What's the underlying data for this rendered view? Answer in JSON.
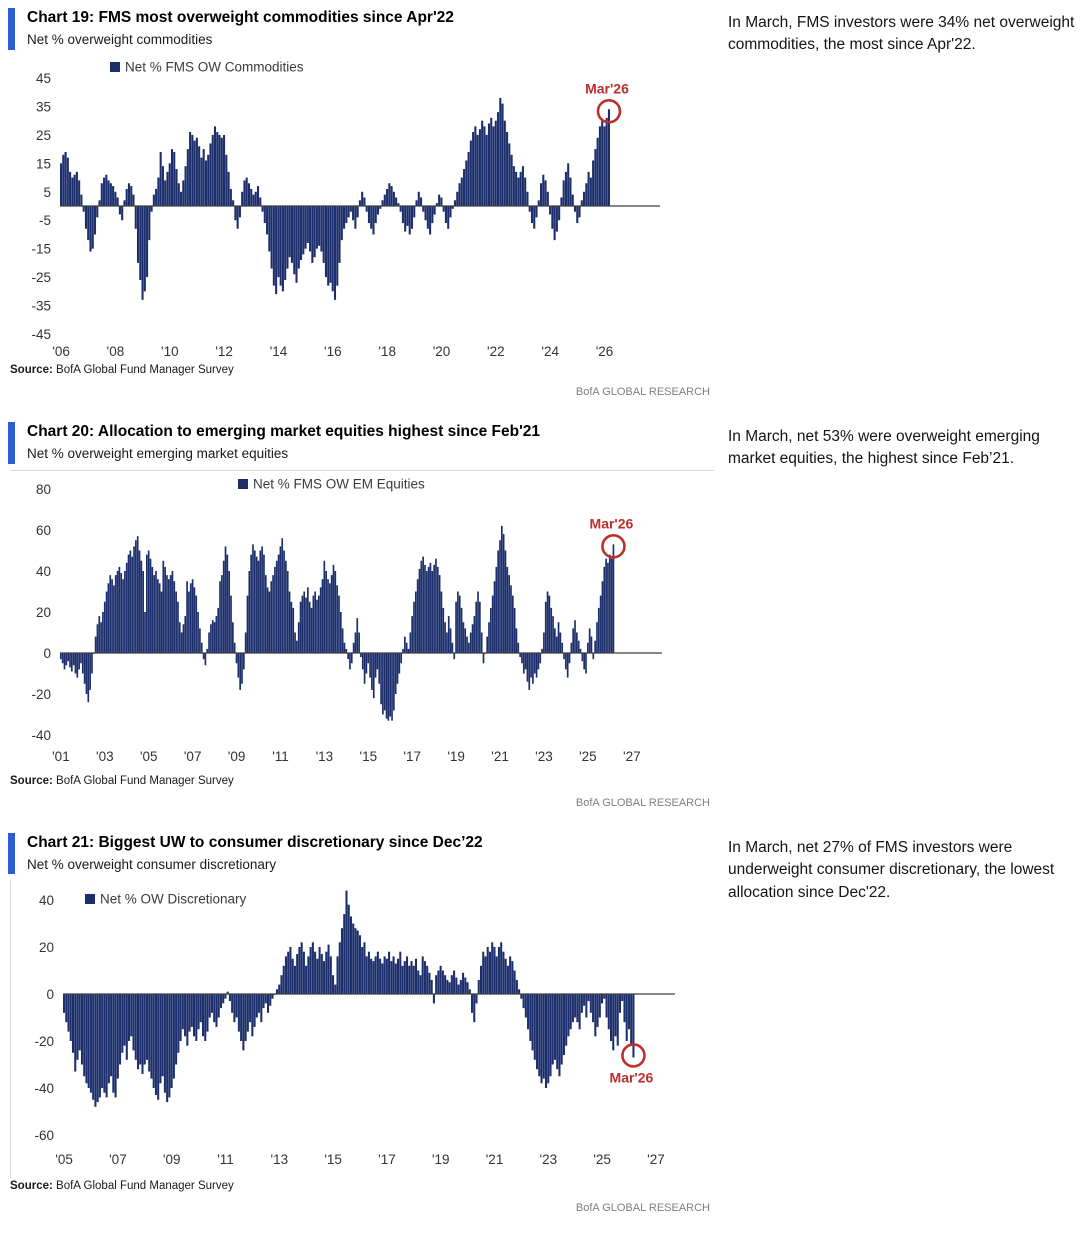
{
  "colors": {
    "bar_navy": "#1b2e6b",
    "accent_blue": "#2d5bd3",
    "annotation_red": "#bb2f2e",
    "axis_line": "#3f3f3f",
    "border_gray": "#d9d9d9",
    "research_gray": "#7f7f7f"
  },
  "sections": [
    {
      "title": "Chart 19: FMS most overweight commodities since Apr'22",
      "subtitle": "Net % overweight commodities",
      "note": "In March, FMS investors were 34% net overweight commodities, the most since Apr'22.",
      "source_label": "Source:",
      "source_text": "BofA Global Fund Manager Survey",
      "research": "BofA GLOBAL RESEARCH"
    },
    {
      "title": "Chart 20: Allocation to emerging market equities highest since Feb'21",
      "subtitle": "Net % overweight emerging market equities",
      "note": "In March, net 53% were overweight emerging market equities, the highest since Feb’21.",
      "source_label": "Source:",
      "source_text": "BofA Global Fund Manager Survey",
      "research": "BofA GLOBAL RESEARCH"
    },
    {
      "title": "Chart 21: Biggest UW to consumer discretionary since Dec’22",
      "subtitle": "Net % overweight consumer discretionary",
      "note": "In March, net 27% of FMS investors were underweight consumer discretionary, the lowest allocation since Dec'22.",
      "source_label": "Source:",
      "source_text": "BofA Global Fund Manager Survey",
      "research": "BofA GLOBAL RESEARCH"
    }
  ],
  "chart_data": [
    {
      "type": "bar",
      "title": "Chart 19: FMS most overweight commodities since Apr'22",
      "legend": "Net % FMS OW Commodities",
      "ylabel": "Net % overweight commodities",
      "ylim": [
        -45,
        45
      ],
      "yticks": [
        45,
        35,
        25,
        15,
        5,
        -5,
        -15,
        -25,
        -35,
        -45
      ],
      "x_start": "2006-01",
      "x_axis_end": "2028-02",
      "xticks": [
        "'06",
        "'08",
        "'10",
        "'12",
        "'14",
        "'16",
        "'18",
        "'20",
        "'22",
        "'24",
        "'26"
      ],
      "xtick_years": [
        2006,
        2008,
        2010,
        2012,
        2014,
        2016,
        2018,
        2020,
        2022,
        2024,
        2026
      ],
      "annotation": {
        "label": "Mar'26",
        "month": "2026-03",
        "value": 34,
        "placement": "above"
      },
      "grid": false,
      "legend_position": "top-left",
      "values": [
        15,
        18,
        19,
        17,
        12,
        10,
        11,
        12,
        9,
        4,
        -2,
        -8,
        -12,
        -16,
        -15,
        -10,
        -4,
        2,
        8,
        10,
        11,
        9,
        8,
        7,
        5,
        3,
        -3,
        -5,
        2,
        6,
        8,
        7,
        4,
        -8,
        -20,
        -26,
        -33,
        -30,
        -25,
        -12,
        -2,
        4,
        6,
        10,
        19,
        14,
        9,
        12,
        15,
        20,
        19,
        13,
        8,
        5,
        9,
        14,
        20,
        26,
        25,
        23,
        24,
        21,
        17,
        20,
        16,
        18,
        22,
        25,
        28,
        26,
        25,
        24,
        25,
        18,
        12,
        6,
        2,
        -5,
        -8,
        -4,
        5,
        9,
        10,
        8,
        6,
        4,
        5,
        7,
        3,
        -2,
        -6,
        -10,
        -16,
        -22,
        -28,
        -31,
        -25,
        -28,
        -30,
        -26,
        -22,
        -18,
        -20,
        -24,
        -27,
        -22,
        -19,
        -17,
        -15,
        -13,
        -16,
        -20,
        -18,
        -15,
        -14,
        -16,
        -20,
        -25,
        -28,
        -27,
        -30,
        -33,
        -28,
        -20,
        -12,
        -8,
        -6,
        -4,
        -2,
        -5,
        -8,
        -4,
        2,
        5,
        3,
        -2,
        -6,
        -8,
        -10,
        -6,
        -3,
        -1,
        2,
        4,
        6,
        8,
        7,
        5,
        3,
        1,
        -2,
        -6,
        -9,
        -7,
        -10,
        -8,
        -4,
        2,
        5,
        3,
        -2,
        -5,
        -8,
        -10,
        -6,
        -3,
        1,
        4,
        3,
        -2,
        -6,
        -8,
        -4,
        -1,
        2,
        5,
        8,
        10,
        13,
        16,
        19,
        23,
        26,
        28,
        25,
        27,
        30,
        28,
        25,
        29,
        31,
        28,
        30,
        33,
        38,
        36,
        30,
        26,
        22,
        18,
        14,
        12,
        10,
        12,
        14,
        10,
        5,
        -2,
        -6,
        -8,
        -4,
        2,
        8,
        11,
        9,
        5,
        -3,
        -8,
        -12,
        -9,
        -5,
        3,
        9,
        12,
        15,
        10,
        4,
        -2,
        -6,
        -4,
        2,
        5,
        8,
        12,
        10,
        16,
        20,
        24,
        28,
        30,
        28,
        31,
        34
      ]
    },
    {
      "type": "bar",
      "title": "Chart 20: Allocation to emerging market equities highest since Feb'21",
      "legend": "Net % FMS OW EM Equities",
      "ylabel": "Net % overweight emerging market equities",
      "ylim": [
        -40,
        80
      ],
      "yticks": [
        80,
        60,
        40,
        20,
        0,
        -20,
        -40
      ],
      "x_start": "2001-01",
      "x_axis_end": "2028-06",
      "xticks": [
        "'01",
        "'03",
        "'05",
        "'07",
        "'09",
        "'11",
        "'13",
        "'15",
        "'17",
        "'19",
        "'21",
        "'23",
        "'25",
        "'27"
      ],
      "xtick_years": [
        2001,
        2003,
        2005,
        2007,
        2009,
        2011,
        2013,
        2015,
        2017,
        2019,
        2021,
        2023,
        2025,
        2027
      ],
      "annotation": {
        "label": "Mar'26",
        "month": "2026-03",
        "value": 53,
        "placement": "above"
      },
      "grid": false,
      "legend_position": "top-center",
      "values": [
        -3,
        -5,
        -8,
        -6,
        -4,
        -7,
        -9,
        -6,
        -10,
        -12,
        -8,
        -5,
        -10,
        -15,
        -20,
        -24,
        -18,
        -10,
        0,
        8,
        14,
        18,
        15,
        20,
        25,
        30,
        34,
        38,
        36,
        33,
        38,
        40,
        42,
        39,
        36,
        40,
        44,
        48,
        50,
        47,
        52,
        55,
        57,
        50,
        45,
        40,
        20,
        48,
        50,
        46,
        42,
        38,
        40,
        36,
        34,
        30,
        45,
        42,
        38,
        36,
        38,
        40,
        35,
        30,
        25,
        15,
        10,
        14,
        18,
        35,
        30,
        34,
        36,
        32,
        28,
        20,
        12,
        5,
        -3,
        -6,
        2,
        10,
        14,
        16,
        15,
        18,
        22,
        35,
        38,
        45,
        52,
        48,
        40,
        28,
        15,
        5,
        -5,
        -12,
        -18,
        -15,
        -8,
        10,
        28,
        40,
        48,
        53,
        50,
        47,
        45,
        50,
        52,
        48,
        38,
        32,
        30,
        35,
        38,
        42,
        45,
        48,
        52,
        56,
        50,
        45,
        40,
        30,
        25,
        22,
        10,
        6,
        15,
        25,
        28,
        30,
        27,
        32,
        25,
        22,
        28,
        30,
        26,
        28,
        32,
        36,
        45,
        40,
        36,
        34,
        38,
        43,
        40,
        33,
        28,
        20,
        12,
        5,
        2,
        -3,
        -8,
        -5,
        5,
        10,
        17,
        10,
        -2,
        -8,
        -15,
        -10,
        -5,
        -12,
        -18,
        -22,
        -12,
        -8,
        -15,
        -25,
        -30,
        -28,
        -32,
        -33,
        -31,
        -33,
        -28,
        -20,
        -15,
        -10,
        -5,
        2,
        8,
        5,
        2,
        10,
        18,
        25,
        30,
        36,
        41,
        45,
        47,
        43,
        40,
        42,
        44,
        40,
        43,
        46,
        42,
        38,
        30,
        22,
        15,
        10,
        18,
        12,
        5,
        -3,
        25,
        30,
        28,
        22,
        15,
        12,
        8,
        5,
        10,
        14,
        18,
        25,
        30,
        25,
        10,
        -5,
        0,
        8,
        15,
        22,
        28,
        35,
        42,
        50,
        55,
        62,
        58,
        50,
        42,
        38,
        33,
        28,
        22,
        12,
        5,
        -2,
        -5,
        -10,
        -8,
        -14,
        -18,
        -12,
        -15,
        -10,
        -12,
        -8,
        -5,
        2,
        10,
        25,
        30,
        28,
        22,
        18,
        12,
        8,
        15,
        10,
        5,
        -3,
        -8,
        -12,
        -5,
        5,
        12,
        16,
        10,
        6,
        2,
        -4,
        -8,
        -10,
        5,
        12,
        8,
        -3,
        6,
        15,
        22,
        28,
        35,
        42,
        46,
        44,
        48,
        46,
        53
      ]
    },
    {
      "type": "bar",
      "title": "Chart 21: Biggest UW to consumer discretionary since Dec'22",
      "legend": "Net % OW Discretionary",
      "ylabel": "Net % overweight consumer discretionary",
      "ylim": [
        -60,
        40
      ],
      "yticks": [
        40,
        20,
        0,
        -20,
        -40,
        -60
      ],
      "x_start": "2005-01",
      "x_axis_end": "2027-10",
      "xticks": [
        "'05",
        "'07",
        "'09",
        "'11",
        "'13",
        "'15",
        "'17",
        "'19",
        "'21",
        "'23",
        "'25",
        "'27"
      ],
      "xtick_years": [
        2005,
        2007,
        2009,
        2011,
        2013,
        2015,
        2017,
        2019,
        2021,
        2023,
        2025,
        2027
      ],
      "annotation": {
        "label": "Mar'26",
        "month": "2026-03",
        "value": -27,
        "placement": "below"
      },
      "grid": false,
      "legend_position": "top-left",
      "values": [
        -8,
        -12,
        -16,
        -20,
        -25,
        -33,
        -28,
        -24,
        -30,
        -35,
        -38,
        -40,
        -42,
        -45,
        -48,
        -46,
        -44,
        -40,
        -42,
        -44,
        -38,
        -35,
        -42,
        -44,
        -36,
        -30,
        -25,
        -22,
        -28,
        -20,
        -18,
        -24,
        -28,
        -32,
        -30,
        -34,
        -30,
        -28,
        -33,
        -36,
        -40,
        -43,
        -45,
        -38,
        -35,
        -42,
        -46,
        -44,
        -40,
        -36,
        -30,
        -25,
        -20,
        -15,
        -18,
        -22,
        -16,
        -14,
        -18,
        -20,
        -15,
        -12,
        -18,
        -20,
        -16,
        -10,
        -8,
        -12,
        -14,
        -10,
        -6,
        -4,
        -2,
        1,
        -3,
        -8,
        -12,
        -10,
        -16,
        -20,
        -24,
        -20,
        -16,
        -12,
        -18,
        -14,
        -10,
        -8,
        -12,
        -6,
        -4,
        -8,
        -5,
        -2,
        0,
        2,
        4,
        8,
        12,
        16,
        18,
        20,
        15,
        12,
        17,
        20,
        22,
        18,
        12,
        16,
        20,
        22,
        18,
        15,
        20,
        17,
        14,
        18,
        21,
        16,
        8,
        4,
        16,
        22,
        28,
        34,
        44,
        38,
        33,
        30,
        28,
        27,
        25,
        20,
        22,
        16,
        18,
        15,
        14,
        16,
        18,
        15,
        13,
        16,
        15,
        18,
        14,
        16,
        13,
        15,
        18,
        12,
        14,
        16,
        12,
        14,
        12,
        15,
        10,
        8,
        16,
        14,
        12,
        9,
        6,
        -4,
        8,
        10,
        12,
        10,
        8,
        6,
        5,
        8,
        10,
        7,
        4,
        6,
        9,
        7,
        5,
        2,
        -8,
        -12,
        -4,
        6,
        12,
        18,
        16,
        20,
        18,
        22,
        20,
        16,
        20,
        22,
        18,
        15,
        12,
        16,
        14,
        10,
        6,
        2,
        -2,
        -6,
        -10,
        -15,
        -20,
        -24,
        -28,
        -32,
        -35,
        -38,
        -36,
        -40,
        -38,
        -35,
        -30,
        -28,
        -32,
        -35,
        -30,
        -26,
        -22,
        -18,
        -15,
        -12,
        -10,
        -12,
        -15,
        -8,
        -5,
        -10,
        -3,
        -8,
        -12,
        -18,
        -14,
        -10,
        -4,
        -2,
        -10,
        -15,
        -20,
        -24,
        -18,
        -22,
        -8,
        -3,
        -12,
        -20,
        -15,
        -22,
        -27
      ]
    }
  ]
}
